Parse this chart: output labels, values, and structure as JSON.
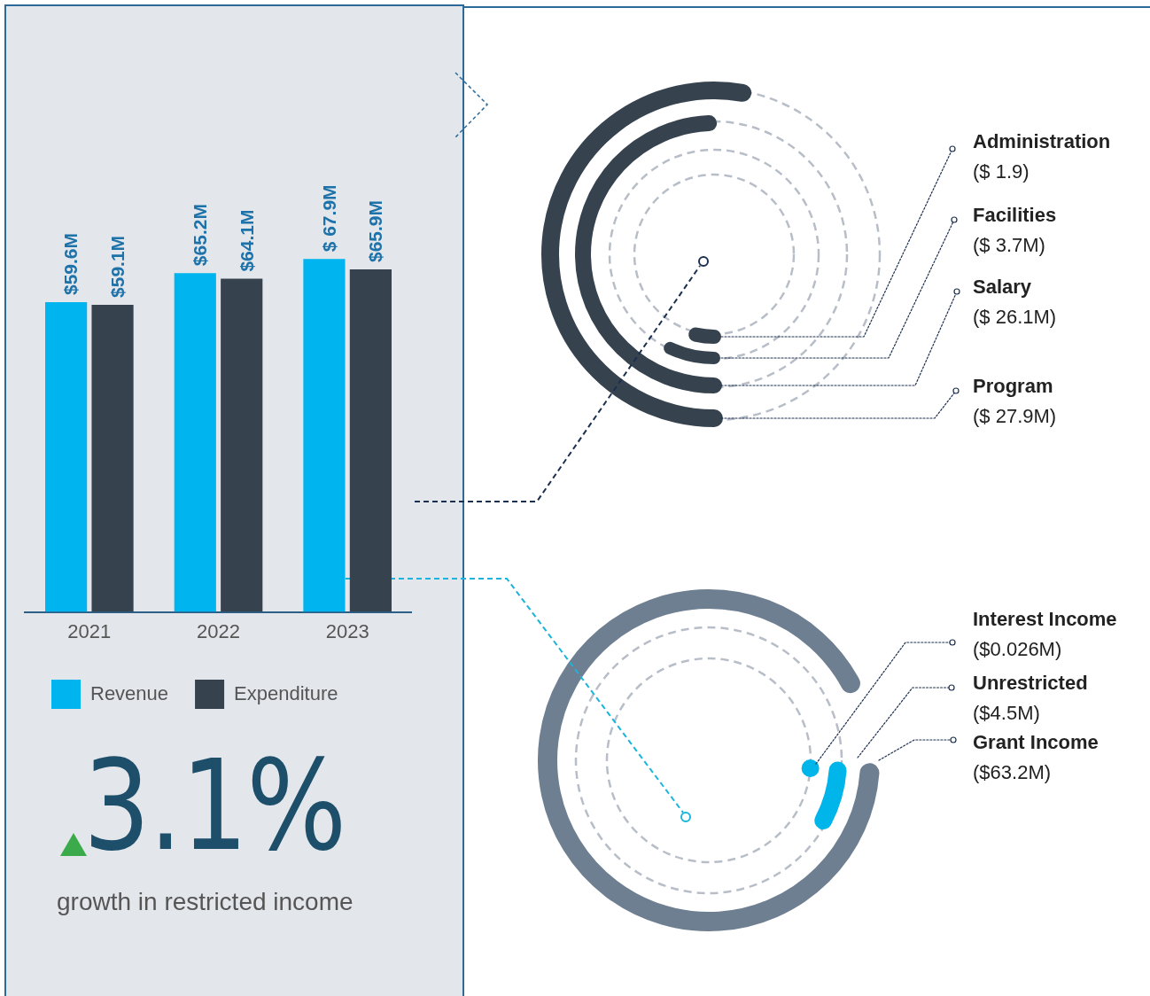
{
  "chart_data": [
    {
      "type": "bar",
      "categories": [
        "2021",
        "2022",
        "2023"
      ],
      "series": [
        {
          "name": "Revenue",
          "color": "#00b5ef",
          "values": [
            59.6,
            65.2,
            67.9
          ],
          "value_labels": [
            "$59.6M",
            "$65.2M",
            "$ 67.9M"
          ]
        },
        {
          "name": "Expenditure",
          "color": "#36434f",
          "values": [
            59.1,
            64.1,
            65.9
          ],
          "value_labels": [
            "$59.1M",
            "$64.1M",
            "$65.9M"
          ]
        }
      ],
      "legend": "bottom",
      "grid": false,
      "tick_labels": "x"
    },
    {
      "type": "other",
      "title": "3.1%",
      "subtitle": "growth in restricted income"
    },
    {
      "type": "other",
      "categories": [
        "Administration",
        "Facilities",
        "Salary",
        "Program"
      ],
      "values": [
        1.9,
        3.7,
        26.1,
        27.9
      ],
      "value_labels": [
        "($ 1.9)",
        "($ 3.7M)",
        "($ 26.1M)",
        "($ 27.9M)"
      ],
      "colors": [
        "#36434f",
        "#36434f",
        "#36434f",
        "#36434f"
      ]
    },
    {
      "type": "other",
      "categories": [
        "Interest Income",
        "Unrestricted",
        "Grant Income"
      ],
      "values": [
        0.026,
        4.5,
        63.2
      ],
      "value_labels": [
        "($0.026M)",
        "($4.5M)",
        "($63.2M)"
      ],
      "colors": [
        "#00b5e9",
        "#00b5e9",
        "#6e7f91"
      ]
    }
  ]
}
